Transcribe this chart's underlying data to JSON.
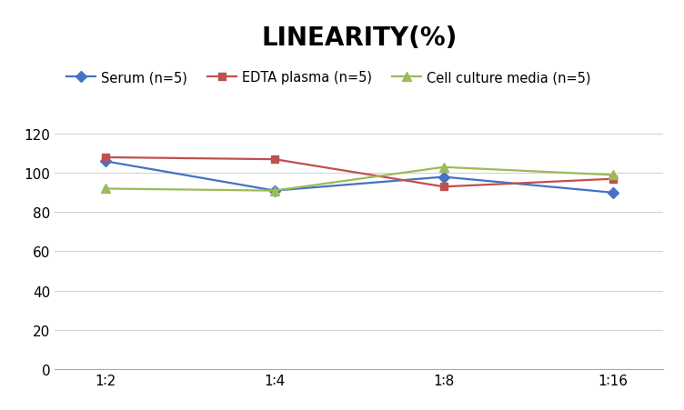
{
  "title": "LINEARITY(%)",
  "x_labels": [
    "1∶2",
    "1∶4",
    "1∶8",
    "1∶16"
  ],
  "x_positions": [
    0,
    1,
    2,
    3
  ],
  "series": [
    {
      "label": "Serum (n=5)",
      "values": [
        106,
        91,
        98,
        90
      ],
      "color": "#4472C4",
      "marker": "D",
      "marker_size": 6,
      "linewidth": 1.6
    },
    {
      "label": "EDTA plasma (n=5)",
      "values": [
        108,
        107,
        93,
        97
      ],
      "color": "#C0504D",
      "marker": "s",
      "marker_size": 6,
      "linewidth": 1.6
    },
    {
      "label": "Cell culture media (n=5)",
      "values": [
        92,
        91,
        103,
        99
      ],
      "color": "#9BBB59",
      "marker": "^",
      "marker_size": 7,
      "linewidth": 1.6
    }
  ],
  "ylim": [
    0,
    130
  ],
  "yticks": [
    0,
    20,
    40,
    60,
    80,
    100,
    120
  ],
  "background_color": "#ffffff",
  "grid_color": "#d3d3d3",
  "title_fontsize": 20,
  "legend_fontsize": 10.5,
  "tick_fontsize": 11
}
